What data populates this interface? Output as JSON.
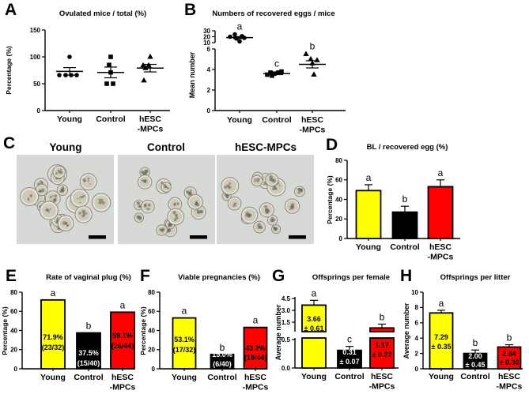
{
  "colors": {
    "young_bar": "#ffff00",
    "control_bar": "#000000",
    "hesc_bar": "#ff0000",
    "axis": "#000000",
    "micrograph_bg": "#d6d9d5"
  },
  "panels": {
    "A": {
      "letter": "A"
    },
    "B": {
      "letter": "B"
    },
    "C": {
      "letter": "C",
      "images": [
        {
          "label": "Young",
          "cells": 22,
          "scalebar": true
        },
        {
          "label": "Control",
          "cells": 16,
          "scalebar": true
        },
        {
          "label": "hESC-MPCs",
          "cells": 18,
          "scalebar": true
        }
      ]
    },
    "D": {
      "letter": "D"
    },
    "E": {
      "letter": "E"
    },
    "F": {
      "letter": "F"
    },
    "G": {
      "letter": "G"
    },
    "H": {
      "letter": "H"
    }
  },
  "chart_data": [
    {
      "panel": "A",
      "type": "scatter",
      "title": "Ovulated mice / total (%)",
      "ylabel": "Percentage (%)",
      "ylim": [
        0,
        150
      ],
      "grid": false,
      "yticks": [
        {
          "v": 0,
          "t": "0"
        },
        {
          "v": 50,
          "t": "50"
        },
        {
          "v": 100,
          "t": "100"
        },
        {
          "v": 150,
          "t": "150"
        }
      ],
      "categories": [
        "Young",
        "Control",
        "hESC\n-MPCs"
      ],
      "series": [
        {
          "name": "Young",
          "symbol": "circle",
          "values": [
            100,
            66,
            66,
            66,
            66
          ],
          "mean": 73,
          "sem": 7
        },
        {
          "name": "Control",
          "symbol": "square",
          "values": [
            100,
            85,
            71,
            50,
            50
          ],
          "mean": 71,
          "sem": 10
        },
        {
          "name": "hESC-MPCs",
          "symbol": "triangle",
          "values": [
            100,
            84,
            84,
            79,
            56
          ],
          "mean": 79,
          "sem": 7
        }
      ]
    },
    {
      "panel": "B",
      "type": "scatter",
      "title": "Numbers of recovered eggs / mice",
      "ylabel": "Mean number",
      "ylim": [
        0,
        30
      ],
      "axis_break": {
        "between": [
          6,
          10
        ]
      },
      "grid": false,
      "yticks": [
        {
          "v": 0,
          "t": "0"
        },
        {
          "v": 2,
          "t": "2"
        },
        {
          "v": 4,
          "t": "4"
        },
        {
          "v": 6,
          "t": "6"
        },
        {
          "v": 10,
          "t": "10"
        },
        {
          "v": 20,
          "t": "20"
        },
        {
          "v": 30,
          "t": "30"
        }
      ],
      "categories": [
        "Young",
        "Control",
        "hESC\n-MPCs"
      ],
      "series": [
        {
          "name": "Young",
          "symbol": "circle",
          "values": [
            24,
            21,
            20,
            18,
            17,
            12
          ],
          "mean": 18.5,
          "sem": 1.7,
          "letter": "a"
        },
        {
          "name": "Control",
          "symbol": "square",
          "values": [
            3.8,
            3.7,
            3.7,
            3.6,
            3.5,
            3.4
          ],
          "mean": 3.6,
          "sem": 0.1,
          "letter": "c"
        },
        {
          "name": "hESC-MPCs",
          "symbol": "triangle",
          "values": [
            5.5,
            5.0,
            4.9,
            4.6,
            3.5
          ],
          "mean": 4.5,
          "sem": 0.35,
          "letter": "b"
        }
      ]
    },
    {
      "panel": "D",
      "type": "bar",
      "title": "BL / recovered egg (%)",
      "ylabel": "Percentage (%)",
      "ylim": [
        0,
        80
      ],
      "grid": false,
      "yticks": [
        {
          "v": 0,
          "t": "0"
        },
        {
          "v": 20,
          "t": "20"
        },
        {
          "v": 40,
          "t": "40"
        },
        {
          "v": 60,
          "t": "60"
        },
        {
          "v": 80,
          "t": "80"
        }
      ],
      "categories": [
        "Young",
        "Control",
        "hESC\n-MPCs"
      ],
      "bars": [
        {
          "name": "Young",
          "value": 49,
          "sem": 6,
          "color": "#ffff00",
          "letter": "a"
        },
        {
          "name": "Control",
          "value": 27,
          "sem": 6,
          "color": "#000000",
          "letter": "b"
        },
        {
          "name": "hESC-MPCs",
          "value": 53,
          "sem": 7,
          "color": "#ff0000",
          "letter": "a"
        }
      ]
    },
    {
      "panel": "E",
      "type": "bar",
      "title": "Rate of vaginal plug (%)",
      "ylabel": "Percentage (%)",
      "ylim": [
        0,
        80
      ],
      "grid": false,
      "yticks": [
        {
          "v": 0,
          "t": "0"
        },
        {
          "v": 20,
          "t": "20"
        },
        {
          "v": 40,
          "t": "40"
        },
        {
          "v": 60,
          "t": "60"
        },
        {
          "v": 80,
          "t": "80"
        }
      ],
      "categories": [
        "Young",
        "Control",
        "hESC\n-MPCs"
      ],
      "bars": [
        {
          "name": "Young",
          "value": 71.9,
          "color": "#ffff00",
          "letter": "a",
          "label": "71.9%",
          "label2": "(23/32)",
          "label_color": "#000000"
        },
        {
          "name": "Control",
          "value": 37.5,
          "color": "#000000",
          "letter": "b",
          "label": "37.5%",
          "label2": "(15/40)",
          "label_color": "#ffffff"
        },
        {
          "name": "hESC-MPCs",
          "value": 59.1,
          "color": "#ff0000",
          "letter": "a",
          "label": "59.1%",
          "label2": "(26/44)",
          "label_color": "#000000"
        }
      ]
    },
    {
      "panel": "F",
      "type": "bar",
      "title": "Viable pregnancies (%)",
      "ylabel": "Percentage (%)",
      "ylim": [
        0,
        80
      ],
      "grid": false,
      "yticks": [
        {
          "v": 0,
          "t": "0"
        },
        {
          "v": 20,
          "t": "20"
        },
        {
          "v": 40,
          "t": "40"
        },
        {
          "v": 60,
          "t": "60"
        },
        {
          "v": 80,
          "t": "80"
        }
      ],
      "categories": [
        "Young",
        "Control",
        "hESC\n-MPCs"
      ],
      "bars": [
        {
          "name": "Young",
          "value": 53.1,
          "color": "#ffff00",
          "letter": "a",
          "label": "53.1%",
          "label2": "(17/32)",
          "label_color": "#000000"
        },
        {
          "name": "Control",
          "value": 15.0,
          "color": "#000000",
          "letter": "b",
          "label": "15.0%",
          "label2": "(6/40)",
          "label_color": "#ffffff"
        },
        {
          "name": "hESC-MPCs",
          "value": 43.2,
          "color": "#ff0000",
          "letter": "a",
          "label": "43.2%",
          "label2": "(19/44)",
          "label_color": "#000000"
        }
      ]
    },
    {
      "panel": "G",
      "type": "bar",
      "title": "Offsprings per female",
      "ylabel": "Average number",
      "ylim": [
        0,
        4.5
      ],
      "axis_break": {
        "between": [
          0.5,
          1.5
        ]
      },
      "grid": false,
      "yticks": [
        {
          "v": 0,
          "t": "0.0"
        },
        {
          "v": 0.5,
          "t": "0.5"
        },
        {
          "v": 1.5,
          "t": "1.5"
        },
        {
          "v": 3,
          "t": "3.0"
        },
        {
          "v": 4.5,
          "t": "4.5"
        }
      ],
      "categories": [
        "Young",
        "Control",
        "hESC\n-MPCs"
      ],
      "bars": [
        {
          "name": "Young",
          "value": 3.66,
          "sem": 0.61,
          "color": "#ffff00",
          "letter": "a",
          "label": "3.66",
          "label2": "± 0.61",
          "label_color": "#000000"
        },
        {
          "name": "Control",
          "value": 0.31,
          "sem": 0.07,
          "color": "#000000",
          "letter": "c",
          "label": "0.31",
          "label2": "± 0.07",
          "label_color": "#ffffff"
        },
        {
          "name": "hESC-MPCs",
          "value": 1.17,
          "sem": 0.22,
          "color": "#ff0000",
          "letter": "b",
          "label": "1.17",
          "label2": "± 0.22",
          "label_color": "#000000"
        }
      ]
    },
    {
      "panel": "H",
      "type": "bar",
      "title": "Offsprings per litter",
      "ylabel": "Average number",
      "ylim": [
        0,
        10
      ],
      "grid": false,
      "yticks": [
        {
          "v": 0,
          "t": "0"
        },
        {
          "v": 2,
          "t": "2"
        },
        {
          "v": 4,
          "t": "4"
        },
        {
          "v": 6,
          "t": "6"
        },
        {
          "v": 8,
          "t": "8"
        },
        {
          "v": 10,
          "t": "10"
        }
      ],
      "categories": [
        "Young",
        "Control",
        "hESC\n-MPCs"
      ],
      "bars": [
        {
          "name": "Young",
          "value": 7.29,
          "sem": 0.35,
          "color": "#ffff00",
          "letter": "a",
          "label": "7.29",
          "label2": "± 0.35",
          "label_color": "#000000"
        },
        {
          "name": "Control",
          "value": 2.0,
          "sem": 0.45,
          "color": "#000000",
          "letter": "b",
          "label": "2.00",
          "label2": "± 0.45",
          "label_color": "#ffffff"
        },
        {
          "name": "hESC-MPCs",
          "value": 2.84,
          "sem": 0.3,
          "color": "#ff0000",
          "letter": "b",
          "label": "2.84",
          "label2": "± 0.30",
          "label_color": "#000000"
        }
      ]
    }
  ]
}
